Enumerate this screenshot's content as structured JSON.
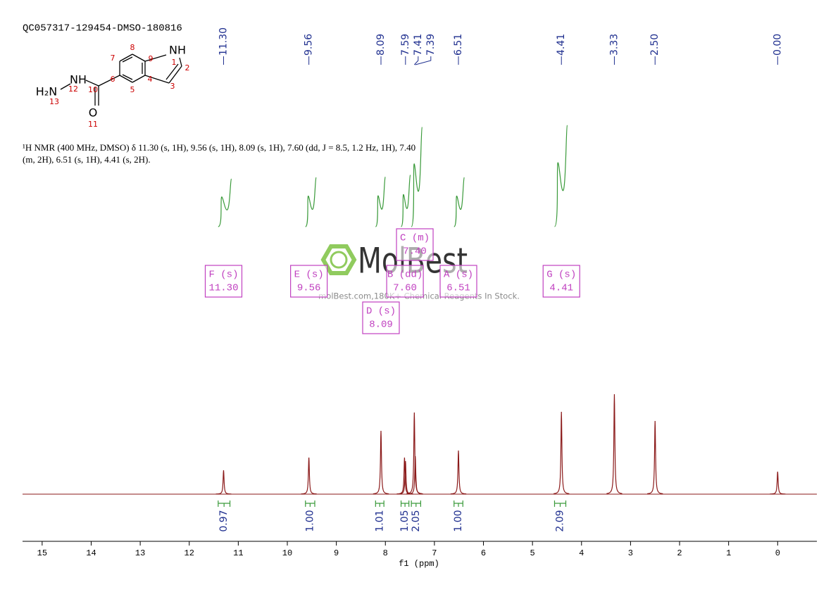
{
  "title": "QC057317-129454-DMSO-180816",
  "structure": {
    "labels": [
      "NH",
      "1",
      "2",
      "3",
      "4",
      "5",
      "6",
      "7",
      "8",
      "9",
      "10",
      "11",
      "12",
      "13",
      "O",
      "H₂N",
      "NH"
    ]
  },
  "description": "¹H NMR (400 MHz, DMSO) δ 11.30 (s, 1H), 9.56 (s, 1H), 8.09 (s, 1H), 7.60 (dd, J = 8.5, 1.2 Hz, 1H), 7.40 (m, 2H), 6.51 (s, 1H), 4.41 (s, 2H).",
  "watermark": {
    "logo": "MolBest",
    "tagline": "molBest.com,180K+ Chemical Reagents In Stock."
  },
  "chart_data": {
    "type": "spectrum",
    "xlabel": "f1 (ppm)",
    "xlim": [
      15.4,
      -0.8
    ],
    "xticks": [
      15,
      14,
      13,
      12,
      11,
      10,
      9,
      8,
      7,
      6,
      5,
      4,
      3,
      2,
      1,
      0
    ],
    "ylim": [
      0,
      160
    ],
    "color": "#8b1a1a",
    "peaks": {
      "x": [
        11.3,
        9.56,
        8.09,
        7.61,
        7.59,
        7.41,
        7.39,
        6.51,
        4.41,
        3.33,
        2.5,
        0
      ],
      "values": [
        34,
        52,
        90,
        52,
        47,
        116,
        54,
        62,
        117,
        142,
        104,
        32
      ]
    },
    "peak_labels": [
      {
        "value": 11.3,
        "label": "11.30"
      },
      {
        "value": 9.56,
        "label": "9.56"
      },
      {
        "value": 8.09,
        "label": "8.09"
      },
      {
        "value": 7.59,
        "label": "7.59"
      },
      {
        "value": 7.41,
        "label": "7.41"
      },
      {
        "value": 7.39,
        "label": "7.39"
      },
      {
        "value": 6.51,
        "label": "6.51"
      },
      {
        "value": 4.41,
        "label": "4.41"
      },
      {
        "value": 3.33,
        "label": "3.33"
      },
      {
        "value": 2.5,
        "label": "2.50"
      },
      {
        "value": 0,
        "label": "0.00"
      }
    ],
    "label_color": "#1f2f8f",
    "integrals": {
      "ranges": [
        [
          11.41,
          11.17
        ],
        [
          9.63,
          9.44
        ],
        [
          8.2,
          8.03
        ],
        [
          7.68,
          7.52
        ],
        [
          7.47,
          7.28
        ],
        [
          6.6,
          6.42
        ],
        [
          4.55,
          4.32
        ]
      ],
      "values": [
        0.97,
        1,
        1.01,
        1.05,
        2.05,
        1,
        2.09
      ],
      "value_labels": [
        "0.97",
        "1.00",
        "1.01",
        "1.05",
        "2.05",
        "1.00",
        "2.09"
      ],
      "color": "#3a9a3a"
    },
    "multiplets": {
      "names": [
        "F (s)",
        "E (s)",
        "D (s)",
        "B (dd)",
        "C (m)",
        "A (s)",
        "G (s)"
      ],
      "values": [
        11.3,
        9.56,
        8.09,
        7.6,
        7.4,
        6.51,
        4.41
      ],
      "value_labels": [
        "11.30",
        "9.56",
        "8.09",
        "7.60",
        "7.40",
        "6.51",
        "4.41"
      ],
      "color": "#c040c0"
    }
  }
}
